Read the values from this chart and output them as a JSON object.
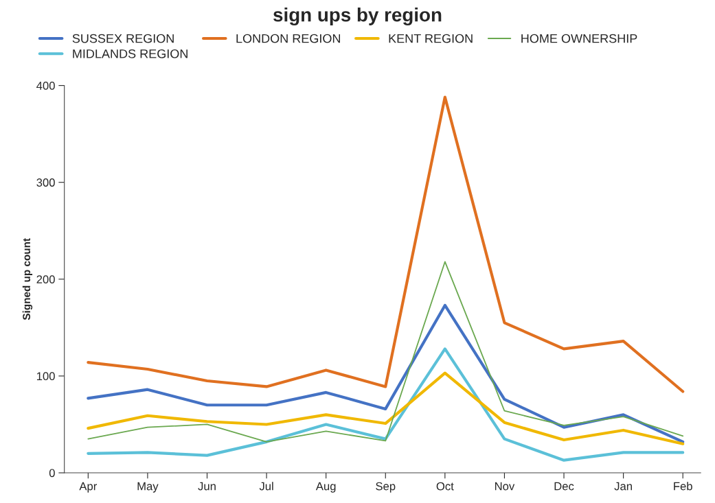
{
  "chart_data": {
    "type": "line",
    "title": "sign ups by region",
    "ylabel": "Signed up count",
    "categories": [
      "Apr",
      "May",
      "Jun",
      "Jul",
      "Aug",
      "Sep",
      "Oct",
      "Nov",
      "Dec",
      "Jan",
      "Feb"
    ],
    "series": [
      {
        "name": "SUSSEX REGION",
        "color": "#4472c4",
        "values": [
          77,
          86,
          70,
          70,
          83,
          66,
          173,
          76,
          47,
          60,
          32
        ]
      },
      {
        "name": "MIDLANDS REGION",
        "color": "#5bc0d8",
        "values": [
          20,
          21,
          18,
          32,
          50,
          35,
          128,
          35,
          13,
          21,
          21
        ]
      },
      {
        "name": "LONDON REGION",
        "color": "#e07020",
        "values": [
          114,
          107,
          95,
          89,
          106,
          89,
          388,
          155,
          128,
          136,
          84
        ]
      },
      {
        "name": "KENT REGION",
        "color": "#f0b800",
        "values": [
          46,
          59,
          53,
          50,
          60,
          51,
          103,
          52,
          34,
          44,
          30
        ]
      },
      {
        "name": "HOME OWNERSHIP",
        "color": "#6aa84f",
        "values": [
          35,
          47,
          50,
          32,
          43,
          33,
          218,
          64,
          49,
          58,
          38
        ]
      }
    ],
    "ylim": [
      0,
      400
    ],
    "yticks": [
      0,
      100,
      200,
      300,
      400
    ],
    "grid": false,
    "legend": "top",
    "marker": "none",
    "line_style": "solid"
  }
}
